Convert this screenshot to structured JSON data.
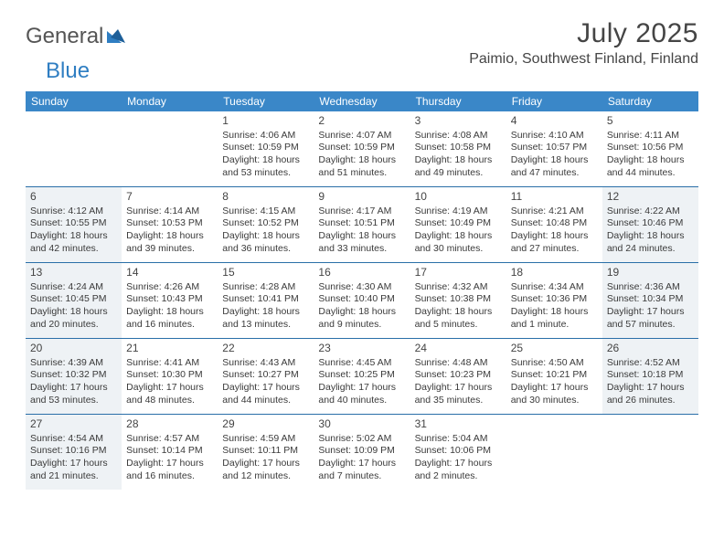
{
  "brand": {
    "text_a": "General",
    "text_b": "Blue"
  },
  "title": "July 2025",
  "location": "Paimio, Southwest Finland, Finland",
  "weekdays": [
    "Sunday",
    "Monday",
    "Tuesday",
    "Wednesday",
    "Thursday",
    "Friday",
    "Saturday"
  ],
  "colors": {
    "header_bg": "#3a87c8",
    "header_text": "#ffffff",
    "border": "#2a6fa8",
    "shade": "#eef2f5",
    "body_text": "#3a3a3a",
    "title_text": "#454545",
    "logo_gray": "#555555",
    "logo_blue": "#2f7ec2",
    "page_bg": "#ffffff"
  },
  "typography": {
    "title_fontsize": 30,
    "location_fontsize": 16,
    "weekday_fontsize": 12,
    "daynum_fontsize": 12,
    "body_fontsize": 10.5,
    "logo_fontsize": 24
  },
  "layout": {
    "columns": 7,
    "rows": 5,
    "cell_min_height": 82
  },
  "weeks": [
    [
      {
        "num": "",
        "sunrise": "",
        "sunset": "",
        "daylight": "",
        "shaded": false
      },
      {
        "num": "",
        "sunrise": "",
        "sunset": "",
        "daylight": "",
        "shaded": false
      },
      {
        "num": "1",
        "sunrise": "Sunrise: 4:06 AM",
        "sunset": "Sunset: 10:59 PM",
        "daylight": "Daylight: 18 hours and 53 minutes.",
        "shaded": false
      },
      {
        "num": "2",
        "sunrise": "Sunrise: 4:07 AM",
        "sunset": "Sunset: 10:59 PM",
        "daylight": "Daylight: 18 hours and 51 minutes.",
        "shaded": false
      },
      {
        "num": "3",
        "sunrise": "Sunrise: 4:08 AM",
        "sunset": "Sunset: 10:58 PM",
        "daylight": "Daylight: 18 hours and 49 minutes.",
        "shaded": false
      },
      {
        "num": "4",
        "sunrise": "Sunrise: 4:10 AM",
        "sunset": "Sunset: 10:57 PM",
        "daylight": "Daylight: 18 hours and 47 minutes.",
        "shaded": false
      },
      {
        "num": "5",
        "sunrise": "Sunrise: 4:11 AM",
        "sunset": "Sunset: 10:56 PM",
        "daylight": "Daylight: 18 hours and 44 minutes.",
        "shaded": false
      }
    ],
    [
      {
        "num": "6",
        "sunrise": "Sunrise: 4:12 AM",
        "sunset": "Sunset: 10:55 PM",
        "daylight": "Daylight: 18 hours and 42 minutes.",
        "shaded": true
      },
      {
        "num": "7",
        "sunrise": "Sunrise: 4:14 AM",
        "sunset": "Sunset: 10:53 PM",
        "daylight": "Daylight: 18 hours and 39 minutes.",
        "shaded": false
      },
      {
        "num": "8",
        "sunrise": "Sunrise: 4:15 AM",
        "sunset": "Sunset: 10:52 PM",
        "daylight": "Daylight: 18 hours and 36 minutes.",
        "shaded": false
      },
      {
        "num": "9",
        "sunrise": "Sunrise: 4:17 AM",
        "sunset": "Sunset: 10:51 PM",
        "daylight": "Daylight: 18 hours and 33 minutes.",
        "shaded": false
      },
      {
        "num": "10",
        "sunrise": "Sunrise: 4:19 AM",
        "sunset": "Sunset: 10:49 PM",
        "daylight": "Daylight: 18 hours and 30 minutes.",
        "shaded": false
      },
      {
        "num": "11",
        "sunrise": "Sunrise: 4:21 AM",
        "sunset": "Sunset: 10:48 PM",
        "daylight": "Daylight: 18 hours and 27 minutes.",
        "shaded": false
      },
      {
        "num": "12",
        "sunrise": "Sunrise: 4:22 AM",
        "sunset": "Sunset: 10:46 PM",
        "daylight": "Daylight: 18 hours and 24 minutes.",
        "shaded": true
      }
    ],
    [
      {
        "num": "13",
        "sunrise": "Sunrise: 4:24 AM",
        "sunset": "Sunset: 10:45 PM",
        "daylight": "Daylight: 18 hours and 20 minutes.",
        "shaded": true
      },
      {
        "num": "14",
        "sunrise": "Sunrise: 4:26 AM",
        "sunset": "Sunset: 10:43 PM",
        "daylight": "Daylight: 18 hours and 16 minutes.",
        "shaded": false
      },
      {
        "num": "15",
        "sunrise": "Sunrise: 4:28 AM",
        "sunset": "Sunset: 10:41 PM",
        "daylight": "Daylight: 18 hours and 13 minutes.",
        "shaded": false
      },
      {
        "num": "16",
        "sunrise": "Sunrise: 4:30 AM",
        "sunset": "Sunset: 10:40 PM",
        "daylight": "Daylight: 18 hours and 9 minutes.",
        "shaded": false
      },
      {
        "num": "17",
        "sunrise": "Sunrise: 4:32 AM",
        "sunset": "Sunset: 10:38 PM",
        "daylight": "Daylight: 18 hours and 5 minutes.",
        "shaded": false
      },
      {
        "num": "18",
        "sunrise": "Sunrise: 4:34 AM",
        "sunset": "Sunset: 10:36 PM",
        "daylight": "Daylight: 18 hours and 1 minute.",
        "shaded": false
      },
      {
        "num": "19",
        "sunrise": "Sunrise: 4:36 AM",
        "sunset": "Sunset: 10:34 PM",
        "daylight": "Daylight: 17 hours and 57 minutes.",
        "shaded": true
      }
    ],
    [
      {
        "num": "20",
        "sunrise": "Sunrise: 4:39 AM",
        "sunset": "Sunset: 10:32 PM",
        "daylight": "Daylight: 17 hours and 53 minutes.",
        "shaded": true
      },
      {
        "num": "21",
        "sunrise": "Sunrise: 4:41 AM",
        "sunset": "Sunset: 10:30 PM",
        "daylight": "Daylight: 17 hours and 48 minutes.",
        "shaded": false
      },
      {
        "num": "22",
        "sunrise": "Sunrise: 4:43 AM",
        "sunset": "Sunset: 10:27 PM",
        "daylight": "Daylight: 17 hours and 44 minutes.",
        "shaded": false
      },
      {
        "num": "23",
        "sunrise": "Sunrise: 4:45 AM",
        "sunset": "Sunset: 10:25 PM",
        "daylight": "Daylight: 17 hours and 40 minutes.",
        "shaded": false
      },
      {
        "num": "24",
        "sunrise": "Sunrise: 4:48 AM",
        "sunset": "Sunset: 10:23 PM",
        "daylight": "Daylight: 17 hours and 35 minutes.",
        "shaded": false
      },
      {
        "num": "25",
        "sunrise": "Sunrise: 4:50 AM",
        "sunset": "Sunset: 10:21 PM",
        "daylight": "Daylight: 17 hours and 30 minutes.",
        "shaded": false
      },
      {
        "num": "26",
        "sunrise": "Sunrise: 4:52 AM",
        "sunset": "Sunset: 10:18 PM",
        "daylight": "Daylight: 17 hours and 26 minutes.",
        "shaded": true
      }
    ],
    [
      {
        "num": "27",
        "sunrise": "Sunrise: 4:54 AM",
        "sunset": "Sunset: 10:16 PM",
        "daylight": "Daylight: 17 hours and 21 minutes.",
        "shaded": true
      },
      {
        "num": "28",
        "sunrise": "Sunrise: 4:57 AM",
        "sunset": "Sunset: 10:14 PM",
        "daylight": "Daylight: 17 hours and 16 minutes.",
        "shaded": false
      },
      {
        "num": "29",
        "sunrise": "Sunrise: 4:59 AM",
        "sunset": "Sunset: 10:11 PM",
        "daylight": "Daylight: 17 hours and 12 minutes.",
        "shaded": false
      },
      {
        "num": "30",
        "sunrise": "Sunrise: 5:02 AM",
        "sunset": "Sunset: 10:09 PM",
        "daylight": "Daylight: 17 hours and 7 minutes.",
        "shaded": false
      },
      {
        "num": "31",
        "sunrise": "Sunrise: 5:04 AM",
        "sunset": "Sunset: 10:06 PM",
        "daylight": "Daylight: 17 hours and 2 minutes.",
        "shaded": false
      },
      {
        "num": "",
        "sunrise": "",
        "sunset": "",
        "daylight": "",
        "shaded": false
      },
      {
        "num": "",
        "sunrise": "",
        "sunset": "",
        "daylight": "",
        "shaded": false
      }
    ]
  ]
}
